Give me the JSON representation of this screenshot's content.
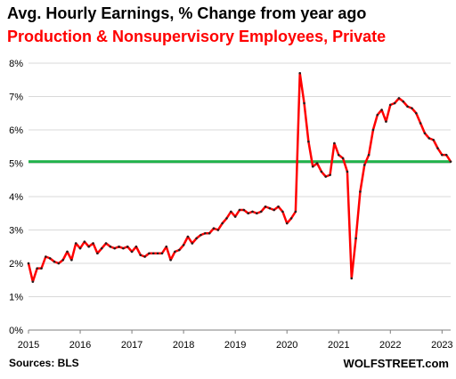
{
  "header": {
    "title": "Avg. Hourly Earnings, % Change from year ago",
    "subtitle": "Production & Nonsupervisory  Employees, Private"
  },
  "footer": {
    "source": "Sources: BLS",
    "brand": "WOLFSTREET.com"
  },
  "colors": {
    "series_line": "#ff0000",
    "markers": "#222222",
    "reference_line": "#22b24c",
    "grid": "#d9d9d9",
    "axis": "#7f7f7f"
  },
  "chart_data": {
    "type": "line",
    "title": "Avg. Hourly Earnings, % Change from year ago",
    "subtitle": "Production & Nonsupervisory  Employees, Private",
    "xlabel": "",
    "ylabel": "",
    "x_tick_labels": [
      "2015",
      "2016",
      "2017",
      "2018",
      "2019",
      "2020",
      "2021",
      "2022",
      "2023"
    ],
    "y_tick_labels": [
      "0%",
      "1%",
      "2%",
      "3%",
      "4%",
      "5%",
      "6%",
      "7%",
      "8%"
    ],
    "ylim": [
      0,
      8
    ],
    "xlim": [
      "2015-01",
      "2023-03"
    ],
    "grid": "horizontal",
    "reference_line": {
      "y": 5.05
    },
    "series": [
      {
        "x": [
          "2015-01",
          "2015-02",
          "2015-03",
          "2015-04",
          "2015-05",
          "2015-06",
          "2015-07",
          "2015-08",
          "2015-09",
          "2015-10",
          "2015-11",
          "2015-12",
          "2016-01",
          "2016-02",
          "2016-03",
          "2016-04",
          "2016-05",
          "2016-06",
          "2016-07",
          "2016-08",
          "2016-09",
          "2016-10",
          "2016-11",
          "2016-12",
          "2017-01",
          "2017-02",
          "2017-03",
          "2017-04",
          "2017-05",
          "2017-06",
          "2017-07",
          "2017-08",
          "2017-09",
          "2017-10",
          "2017-11",
          "2017-12",
          "2018-01",
          "2018-02",
          "2018-03",
          "2018-04",
          "2018-05",
          "2018-06",
          "2018-07",
          "2018-08",
          "2018-09",
          "2018-10",
          "2018-11",
          "2018-12",
          "2019-01",
          "2019-02",
          "2019-03",
          "2019-04",
          "2019-05",
          "2019-06",
          "2019-07",
          "2019-08",
          "2019-09",
          "2019-10",
          "2019-11",
          "2019-12",
          "2020-01",
          "2020-02",
          "2020-03",
          "2020-04",
          "2020-05",
          "2020-06",
          "2020-07",
          "2020-08",
          "2020-09",
          "2020-10",
          "2020-11",
          "2020-12",
          "2021-01",
          "2021-02",
          "2021-03",
          "2021-04",
          "2021-05",
          "2021-06",
          "2021-07",
          "2021-08",
          "2021-09",
          "2021-10",
          "2021-11",
          "2021-12",
          "2022-01",
          "2022-02",
          "2022-03",
          "2022-04",
          "2022-05",
          "2022-06",
          "2022-07",
          "2022-08",
          "2022-09",
          "2022-10",
          "2022-11",
          "2022-12",
          "2023-01",
          "2023-02",
          "2023-03"
        ],
        "values": [
          2.0,
          1.45,
          1.85,
          1.85,
          2.2,
          2.15,
          2.05,
          2.0,
          2.1,
          2.35,
          2.1,
          2.6,
          2.45,
          2.65,
          2.5,
          2.6,
          2.3,
          2.45,
          2.6,
          2.5,
          2.45,
          2.5,
          2.45,
          2.5,
          2.35,
          2.5,
          2.25,
          2.2,
          2.3,
          2.3,
          2.3,
          2.3,
          2.5,
          2.1,
          2.35,
          2.4,
          2.55,
          2.8,
          2.6,
          2.75,
          2.85,
          2.9,
          2.9,
          3.05,
          3.0,
          3.2,
          3.35,
          3.55,
          3.4,
          3.6,
          3.6,
          3.5,
          3.55,
          3.5,
          3.55,
          3.7,
          3.65,
          3.6,
          3.7,
          3.55,
          3.2,
          3.35,
          3.55,
          7.7,
          6.8,
          5.65,
          4.9,
          5.0,
          4.75,
          4.6,
          4.65,
          5.6,
          5.25,
          5.15,
          4.75,
          1.55,
          2.75,
          4.15,
          4.95,
          5.25,
          6.0,
          6.45,
          6.6,
          6.25,
          6.75,
          6.8,
          6.95,
          6.85,
          6.7,
          6.65,
          6.5,
          6.2,
          5.9,
          5.75,
          5.7,
          5.45,
          5.25,
          5.25,
          5.05
        ]
      }
    ]
  }
}
